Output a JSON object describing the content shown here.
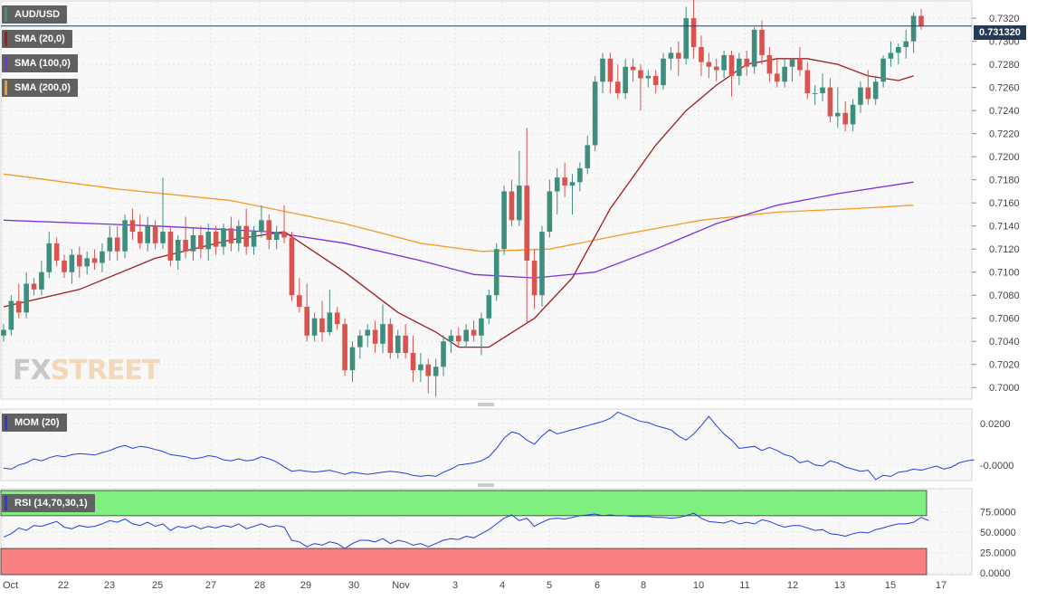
{
  "colors": {
    "up": "#3e8e7e",
    "down": "#d9534f",
    "sma20": "#a01c1c",
    "sma100": "#7b2fe0",
    "sma200": "#f59a23",
    "mom": "#1f3fe0",
    "rsi": "#1f3fe0",
    "rsi_overbought": "#7ff07f",
    "rsi_oversold": "#f98080",
    "price_line": "#243a56"
  },
  "legend": {
    "symbol": "AUD/USD",
    "sma20": "SMA (20,0)",
    "sma100": "SMA (100,0)",
    "sma200": "SMA (200,0)",
    "mom": "MOM (20)",
    "rsi": "RSI (14,70,30,1)"
  },
  "logo": {
    "part1": "FX",
    "part2": "STREET"
  },
  "chart_data": [
    {
      "type": "candlestick",
      "symbol": "AUD/USD",
      "last_price_label": "0.731320",
      "last_price": 0.73132,
      "ylim": [
        0.699,
        0.7335
      ],
      "yticks": [
        "0.7320",
        "0.7300",
        "0.7280",
        "0.7260",
        "0.7240",
        "0.7220",
        "0.7200",
        "0.7180",
        "0.7160",
        "0.7140",
        "0.7120",
        "0.7100",
        "0.7080",
        "0.7060",
        "0.7040",
        "0.7020",
        "0.7000"
      ],
      "xticks": [
        {
          "label": "Oct",
          "x": 0
        },
        {
          "label": "22",
          "x": 13
        },
        {
          "label": "23",
          "x": 23
        },
        {
          "label": "25",
          "x": 33
        },
        {
          "label": "27",
          "x": 43
        },
        {
          "label": "28",
          "x": 53
        },
        {
          "label": "29",
          "x": 63
        },
        {
          "label": "30",
          "x": 73
        },
        {
          "label": "Nov",
          "x": 83
        },
        {
          "label": "3",
          "x": 93
        },
        {
          "label": "4",
          "x": 103
        },
        {
          "label": "5",
          "x": 113
        },
        {
          "label": "6",
          "x": 123
        },
        {
          "label": "8",
          "x": 133
        },
        {
          "label": "10",
          "x": 143
        },
        {
          "label": "11",
          "x": 153
        },
        {
          "label": "12",
          "x": 163
        },
        {
          "label": "13",
          "x": 173
        },
        {
          "label": "15",
          "x": 183
        },
        {
          "label": "17",
          "x": 193
        }
      ],
      "candles": [
        [
          0.7045,
          0.7055,
          0.704,
          0.705
        ],
        [
          0.705,
          0.708,
          0.7045,
          0.7075
        ],
        [
          0.7075,
          0.709,
          0.706,
          0.7065
        ],
        [
          0.7065,
          0.71,
          0.706,
          0.709
        ],
        [
          0.709,
          0.7095,
          0.708,
          0.7085
        ],
        [
          0.7085,
          0.711,
          0.708,
          0.71
        ],
        [
          0.71,
          0.7135,
          0.7095,
          0.7125
        ],
        [
          0.7125,
          0.713,
          0.7105,
          0.711
        ],
        [
          0.711,
          0.7115,
          0.7095,
          0.71
        ],
        [
          0.71,
          0.712,
          0.709,
          0.7115
        ],
        [
          0.7115,
          0.7122,
          0.7095,
          0.7105
        ],
        [
          0.7105,
          0.7118,
          0.7098,
          0.7112
        ],
        [
          0.7112,
          0.712,
          0.7102,
          0.7108
        ],
        [
          0.7108,
          0.7125,
          0.71,
          0.7118
        ],
        [
          0.7118,
          0.714,
          0.711,
          0.713
        ],
        [
          0.713,
          0.714,
          0.711,
          0.7118
        ],
        [
          0.7118,
          0.715,
          0.7112,
          0.7145
        ],
        [
          0.7145,
          0.7155,
          0.7128,
          0.7135
        ],
        [
          0.7135,
          0.715,
          0.712,
          0.7125
        ],
        [
          0.7125,
          0.7148,
          0.7118,
          0.714
        ],
        [
          0.714,
          0.7145,
          0.712,
          0.7125
        ],
        [
          0.7125,
          0.7182,
          0.712,
          0.7135
        ],
        [
          0.7135,
          0.714,
          0.7105,
          0.711
        ],
        [
          0.711,
          0.7132,
          0.7102,
          0.7128
        ],
        [
          0.7128,
          0.7148,
          0.7112,
          0.7118
        ],
        [
          0.7118,
          0.7138,
          0.711,
          0.7132
        ],
        [
          0.7132,
          0.714,
          0.7112,
          0.712
        ],
        [
          0.712,
          0.7142,
          0.711,
          0.7135
        ],
        [
          0.7135,
          0.714,
          0.7115,
          0.7122
        ],
        [
          0.7122,
          0.7142,
          0.7115,
          0.7138
        ],
        [
          0.7138,
          0.7148,
          0.7118,
          0.7125
        ],
        [
          0.7125,
          0.7145,
          0.7118,
          0.714
        ],
        [
          0.714,
          0.7155,
          0.7115,
          0.7122
        ],
        [
          0.7122,
          0.714,
          0.7115,
          0.7135
        ],
        [
          0.7135,
          0.7158,
          0.713,
          0.7145
        ],
        [
          0.7145,
          0.715,
          0.712,
          0.7128
        ],
        [
          0.7128,
          0.714,
          0.712,
          0.7135
        ],
        [
          0.7135,
          0.7158,
          0.7125,
          0.713
        ],
        [
          0.713,
          0.7135,
          0.7075,
          0.708
        ],
        [
          0.708,
          0.7095,
          0.7065,
          0.707
        ],
        [
          0.707,
          0.709,
          0.704,
          0.7045
        ],
        [
          0.7045,
          0.7065,
          0.704,
          0.706
        ],
        [
          0.706,
          0.7075,
          0.704,
          0.7048
        ],
        [
          0.7048,
          0.7085,
          0.7045,
          0.7065
        ],
        [
          0.7065,
          0.707,
          0.705,
          0.7055
        ],
        [
          0.7055,
          0.706,
          0.701,
          0.7015
        ],
        [
          0.7015,
          0.704,
          0.7005,
          0.7035
        ],
        [
          0.7035,
          0.705,
          0.7025,
          0.7045
        ],
        [
          0.7045,
          0.7055,
          0.7035,
          0.705
        ],
        [
          0.705,
          0.7058,
          0.703,
          0.7038
        ],
        [
          0.7038,
          0.7072,
          0.703,
          0.7055
        ],
        [
          0.7055,
          0.706,
          0.7025,
          0.703
        ],
        [
          0.703,
          0.705,
          0.7025,
          0.7045
        ],
        [
          0.7045,
          0.7055,
          0.7025,
          0.703
        ],
        [
          0.703,
          0.7045,
          0.7005,
          0.7015
        ],
        [
          0.7015,
          0.703,
          0.7005,
          0.702
        ],
        [
          0.702,
          0.7025,
          0.6995,
          0.701
        ],
        [
          0.701,
          0.7025,
          0.6992,
          0.7018
        ],
        [
          0.7018,
          0.7045,
          0.701,
          0.704
        ],
        [
          0.704,
          0.705,
          0.703,
          0.7045
        ],
        [
          0.7045,
          0.7052,
          0.7035,
          0.704
        ],
        [
          0.704,
          0.7055,
          0.7035,
          0.705
        ],
        [
          0.705,
          0.7058,
          0.704,
          0.7045
        ],
        [
          0.7045,
          0.7065,
          0.7028,
          0.706
        ],
        [
          0.706,
          0.7085,
          0.7055,
          0.708
        ],
        [
          0.708,
          0.7125,
          0.7075,
          0.712
        ],
        [
          0.712,
          0.7175,
          0.7115,
          0.717
        ],
        [
          0.717,
          0.718,
          0.714,
          0.7145
        ],
        [
          0.7145,
          0.7205,
          0.714,
          0.7175
        ],
        [
          0.7175,
          0.7225,
          0.7055,
          0.711
        ],
        [
          0.711,
          0.712,
          0.7068,
          0.708
        ],
        [
          0.708,
          0.714,
          0.707,
          0.7135
        ],
        [
          0.7135,
          0.718,
          0.713,
          0.717
        ],
        [
          0.717,
          0.719,
          0.715,
          0.7182
        ],
        [
          0.7182,
          0.7195,
          0.7165,
          0.7175
        ],
        [
          0.7175,
          0.7185,
          0.715,
          0.7178
        ],
        [
          0.7178,
          0.7195,
          0.717,
          0.719
        ],
        [
          0.719,
          0.7218,
          0.7185,
          0.721
        ],
        [
          0.721,
          0.727,
          0.7205,
          0.7265
        ],
        [
          0.7265,
          0.729,
          0.7255,
          0.7285
        ],
        [
          0.7285,
          0.729,
          0.7255,
          0.7265
        ],
        [
          0.7265,
          0.728,
          0.725,
          0.7255
        ],
        [
          0.7255,
          0.7285,
          0.725,
          0.7278
        ],
        [
          0.7278,
          0.7285,
          0.7265,
          0.7275
        ],
        [
          0.7275,
          0.728,
          0.724,
          0.7268
        ],
        [
          0.7268,
          0.7275,
          0.726,
          0.727
        ],
        [
          0.727,
          0.7275,
          0.7255,
          0.7262
        ],
        [
          0.7262,
          0.729,
          0.7258,
          0.7285
        ],
        [
          0.7285,
          0.7295,
          0.7275,
          0.729
        ],
        [
          0.729,
          0.73,
          0.727,
          0.7285
        ],
        [
          0.7285,
          0.733,
          0.728,
          0.732
        ],
        [
          0.732,
          0.7338,
          0.7285,
          0.7295
        ],
        [
          0.7295,
          0.7305,
          0.727,
          0.7282
        ],
        [
          0.7282,
          0.729,
          0.7268,
          0.7278
        ],
        [
          0.7278,
          0.7285,
          0.7265,
          0.7275
        ],
        [
          0.7275,
          0.7292,
          0.7268,
          0.7288
        ],
        [
          0.7288,
          0.7292,
          0.7252,
          0.727
        ],
        [
          0.727,
          0.729,
          0.7262,
          0.7285
        ],
        [
          0.7285,
          0.7292,
          0.727,
          0.7278
        ],
        [
          0.7278,
          0.7312,
          0.7272,
          0.731
        ],
        [
          0.731,
          0.7318,
          0.728,
          0.7288
        ],
        [
          0.7288,
          0.7295,
          0.7265,
          0.7272
        ],
        [
          0.7272,
          0.7285,
          0.726,
          0.7265
        ],
        [
          0.7265,
          0.7285,
          0.726,
          0.7278
        ],
        [
          0.7278,
          0.7285,
          0.7265,
          0.7285
        ],
        [
          0.7285,
          0.7295,
          0.727,
          0.7275
        ],
        [
          0.7275,
          0.7282,
          0.725,
          0.7255
        ],
        [
          0.7255,
          0.7262,
          0.7245,
          0.7255
        ],
        [
          0.7255,
          0.7272,
          0.7248,
          0.726
        ],
        [
          0.726,
          0.7268,
          0.723,
          0.7235
        ],
        [
          0.7235,
          0.726,
          0.7225,
          0.7238
        ],
        [
          0.7238,
          0.7248,
          0.7222,
          0.7228
        ],
        [
          0.7228,
          0.725,
          0.7222,
          0.7245
        ],
        [
          0.7245,
          0.7265,
          0.7238,
          0.726
        ],
        [
          0.726,
          0.7275,
          0.7245,
          0.725
        ],
        [
          0.725,
          0.727,
          0.7245,
          0.7265
        ],
        [
          0.7265,
          0.7288,
          0.726,
          0.7285
        ],
        [
          0.7285,
          0.73,
          0.7278,
          0.729
        ],
        [
          0.729,
          0.7298,
          0.728,
          0.7295
        ],
        [
          0.7295,
          0.731,
          0.7285,
          0.73
        ],
        [
          0.73,
          0.7325,
          0.729,
          0.7322
        ],
        [
          0.7322,
          0.7328,
          0.731,
          0.7313
        ]
      ],
      "sma20": [
        [
          0,
          0.707
        ],
        [
          10,
          0.7085
        ],
        [
          20,
          0.7112
        ],
        [
          30,
          0.7128
        ],
        [
          37,
          0.7135
        ],
        [
          45,
          0.71
        ],
        [
          52,
          0.7065
        ],
        [
          57,
          0.7048
        ],
        [
          60,
          0.7035
        ],
        [
          64,
          0.7035
        ],
        [
          70,
          0.706
        ],
        [
          75,
          0.7095
        ],
        [
          80,
          0.7155
        ],
        [
          86,
          0.721
        ],
        [
          90,
          0.724
        ],
        [
          94,
          0.7262
        ],
        [
          98,
          0.728
        ],
        [
          102,
          0.7285
        ],
        [
          106,
          0.7285
        ],
        [
          110,
          0.728
        ],
        [
          114,
          0.727
        ],
        [
          118,
          0.7266
        ],
        [
          120,
          0.727
        ]
      ],
      "sma100": [
        [
          0,
          0.7145
        ],
        [
          20,
          0.714
        ],
        [
          35,
          0.7135
        ],
        [
          45,
          0.7125
        ],
        [
          55,
          0.711
        ],
        [
          62,
          0.7098
        ],
        [
          70,
          0.7095
        ],
        [
          78,
          0.71
        ],
        [
          86,
          0.712
        ],
        [
          94,
          0.7142
        ],
        [
          102,
          0.7158
        ],
        [
          110,
          0.7168
        ],
        [
          120,
          0.7178
        ]
      ],
      "sma200": [
        [
          0,
          0.7185
        ],
        [
          15,
          0.7172
        ],
        [
          30,
          0.7162
        ],
        [
          45,
          0.7142
        ],
        [
          55,
          0.7125
        ],
        [
          63,
          0.7118
        ],
        [
          72,
          0.712
        ],
        [
          82,
          0.7133
        ],
        [
          92,
          0.7145
        ],
        [
          102,
          0.7152
        ],
        [
          112,
          0.7155
        ],
        [
          120,
          0.7158
        ]
      ]
    },
    {
      "type": "line",
      "name": "MOM (20)",
      "ylim": [
        -0.0075,
        0.027
      ],
      "yticks": [
        "0.0200",
        "-0.0000"
      ],
      "values": [
        -0.0015,
        -0.002,
        0.0,
        0.001,
        0.003,
        0.002,
        0.0035,
        0.0045,
        0.004,
        0.005,
        0.0055,
        0.0052,
        0.0048,
        0.006,
        0.007,
        0.0085,
        0.0095,
        0.008,
        0.009,
        0.0085,
        0.0075,
        0.0065,
        0.005,
        0.0045,
        0.004,
        0.003,
        0.0035,
        0.0045,
        0.004,
        0.0025,
        0.002,
        0.003,
        0.002,
        0.0025,
        0.004,
        0.003,
        0.0015,
        -0.001,
        -0.003,
        -0.0025,
        -0.003,
        -0.0035,
        -0.003,
        -0.0025,
        -0.0035,
        -0.0045,
        -0.0035,
        -0.004,
        -0.0045,
        -0.004,
        -0.0035,
        -0.003,
        -0.0035,
        -0.004,
        -0.005,
        -0.0055,
        -0.005,
        -0.0055,
        -0.0035,
        -0.002,
        0.0,
        0.0005,
        0.001,
        0.002,
        0.004,
        0.008,
        0.013,
        0.016,
        0.015,
        0.012,
        0.01,
        0.014,
        0.017,
        0.015,
        0.016,
        0.017,
        0.018,
        0.019,
        0.02,
        0.021,
        0.0225,
        0.0255,
        0.024,
        0.0225,
        0.021,
        0.0205,
        0.019,
        0.018,
        0.017,
        0.014,
        0.012,
        0.015,
        0.019,
        0.0235,
        0.019,
        0.015,
        0.012,
        0.008,
        0.0085,
        0.009,
        0.007,
        0.0085,
        0.007,
        0.005,
        0.004,
        0.001,
        0.002,
        0.0,
        -0.0005,
        0.002,
        0.001,
        -0.001,
        -0.002,
        -0.003,
        -0.0025,
        -0.007,
        -0.005,
        -0.0055,
        -0.0035,
        -0.003,
        -0.002,
        -0.0025,
        -0.0015,
        -0.0005,
        -0.002,
        -0.001,
        0.001,
        0.002,
        0.0025
      ]
    },
    {
      "type": "line",
      "name": "RSI (14,70,30,1)",
      "ylim": [
        -2,
        103
      ],
      "yticks": [
        "75.0000",
        "50.0000",
        "25.0000",
        "0.0000"
      ],
      "overbought": 70,
      "oversold": 30,
      "values": [
        44,
        48,
        55,
        52,
        58,
        57,
        60,
        63,
        56,
        54,
        58,
        56,
        57,
        60,
        64,
        62,
        66,
        60,
        58,
        62,
        57,
        60,
        52,
        57,
        55,
        58,
        54,
        57,
        55,
        58,
        56,
        60,
        54,
        57,
        60,
        56,
        58,
        56,
        40,
        38,
        32,
        36,
        34,
        38,
        36,
        30,
        36,
        40,
        40,
        38,
        42,
        36,
        40,
        38,
        34,
        36,
        32,
        36,
        40,
        42,
        41,
        45,
        43,
        48,
        53,
        60,
        67,
        71,
        64,
        67,
        57,
        62,
        66,
        67,
        66,
        68,
        70,
        71,
        72,
        70,
        71,
        70,
        70,
        69,
        69,
        69,
        68,
        68,
        67,
        68,
        70,
        73,
        67,
        63,
        62,
        61,
        64,
        60,
        62,
        60,
        65,
        63,
        59,
        56,
        58,
        58,
        55,
        52,
        53,
        48,
        47,
        45,
        48,
        50,
        49,
        53,
        55,
        58,
        60,
        60,
        62,
        68,
        64
      ]
    }
  ]
}
